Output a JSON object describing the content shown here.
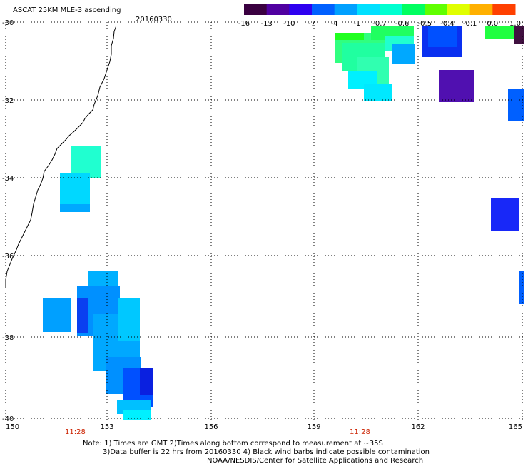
{
  "header": {
    "title": "ASCAT 25KM MLE-3 ascending",
    "date": "20160330"
  },
  "colorbar": {
    "ticks": [
      "-16",
      "-13",
      "-10",
      "-7",
      "-4",
      "-1",
      "-0.7",
      "-0.6",
      "-0.5",
      "-0.4",
      "-0.1",
      "0.0",
      "1.0"
    ],
    "colors": [
      "#3a0040",
      "#5000a0",
      "#2e00f0",
      "#0060ff",
      "#00a0ff",
      "#00e0ff",
      "#00ffd0",
      "#00ff60",
      "#60ff00",
      "#e0ff00",
      "#ffb000",
      "#ff4000"
    ]
  },
  "map": {
    "lat_labels": [
      "-30",
      "-32",
      "-34",
      "-36",
      "-38",
      "-40"
    ],
    "lon_labels": [
      "150",
      "153",
      "156",
      "159",
      "162",
      "165"
    ],
    "time_labels": [
      "11:28",
      "11:28"
    ]
  },
  "footer": {
    "note_line1": "Note: 1) Times are GMT 2)Times along bottom correspond to measurement at ~35S",
    "note_line2": "3)Data buffer is 22 hrs from 20160330 4) Black wind barbs indicate possible contamination",
    "credit": "NOAA/NESDIS/Center for Satellite Applications and Research"
  }
}
